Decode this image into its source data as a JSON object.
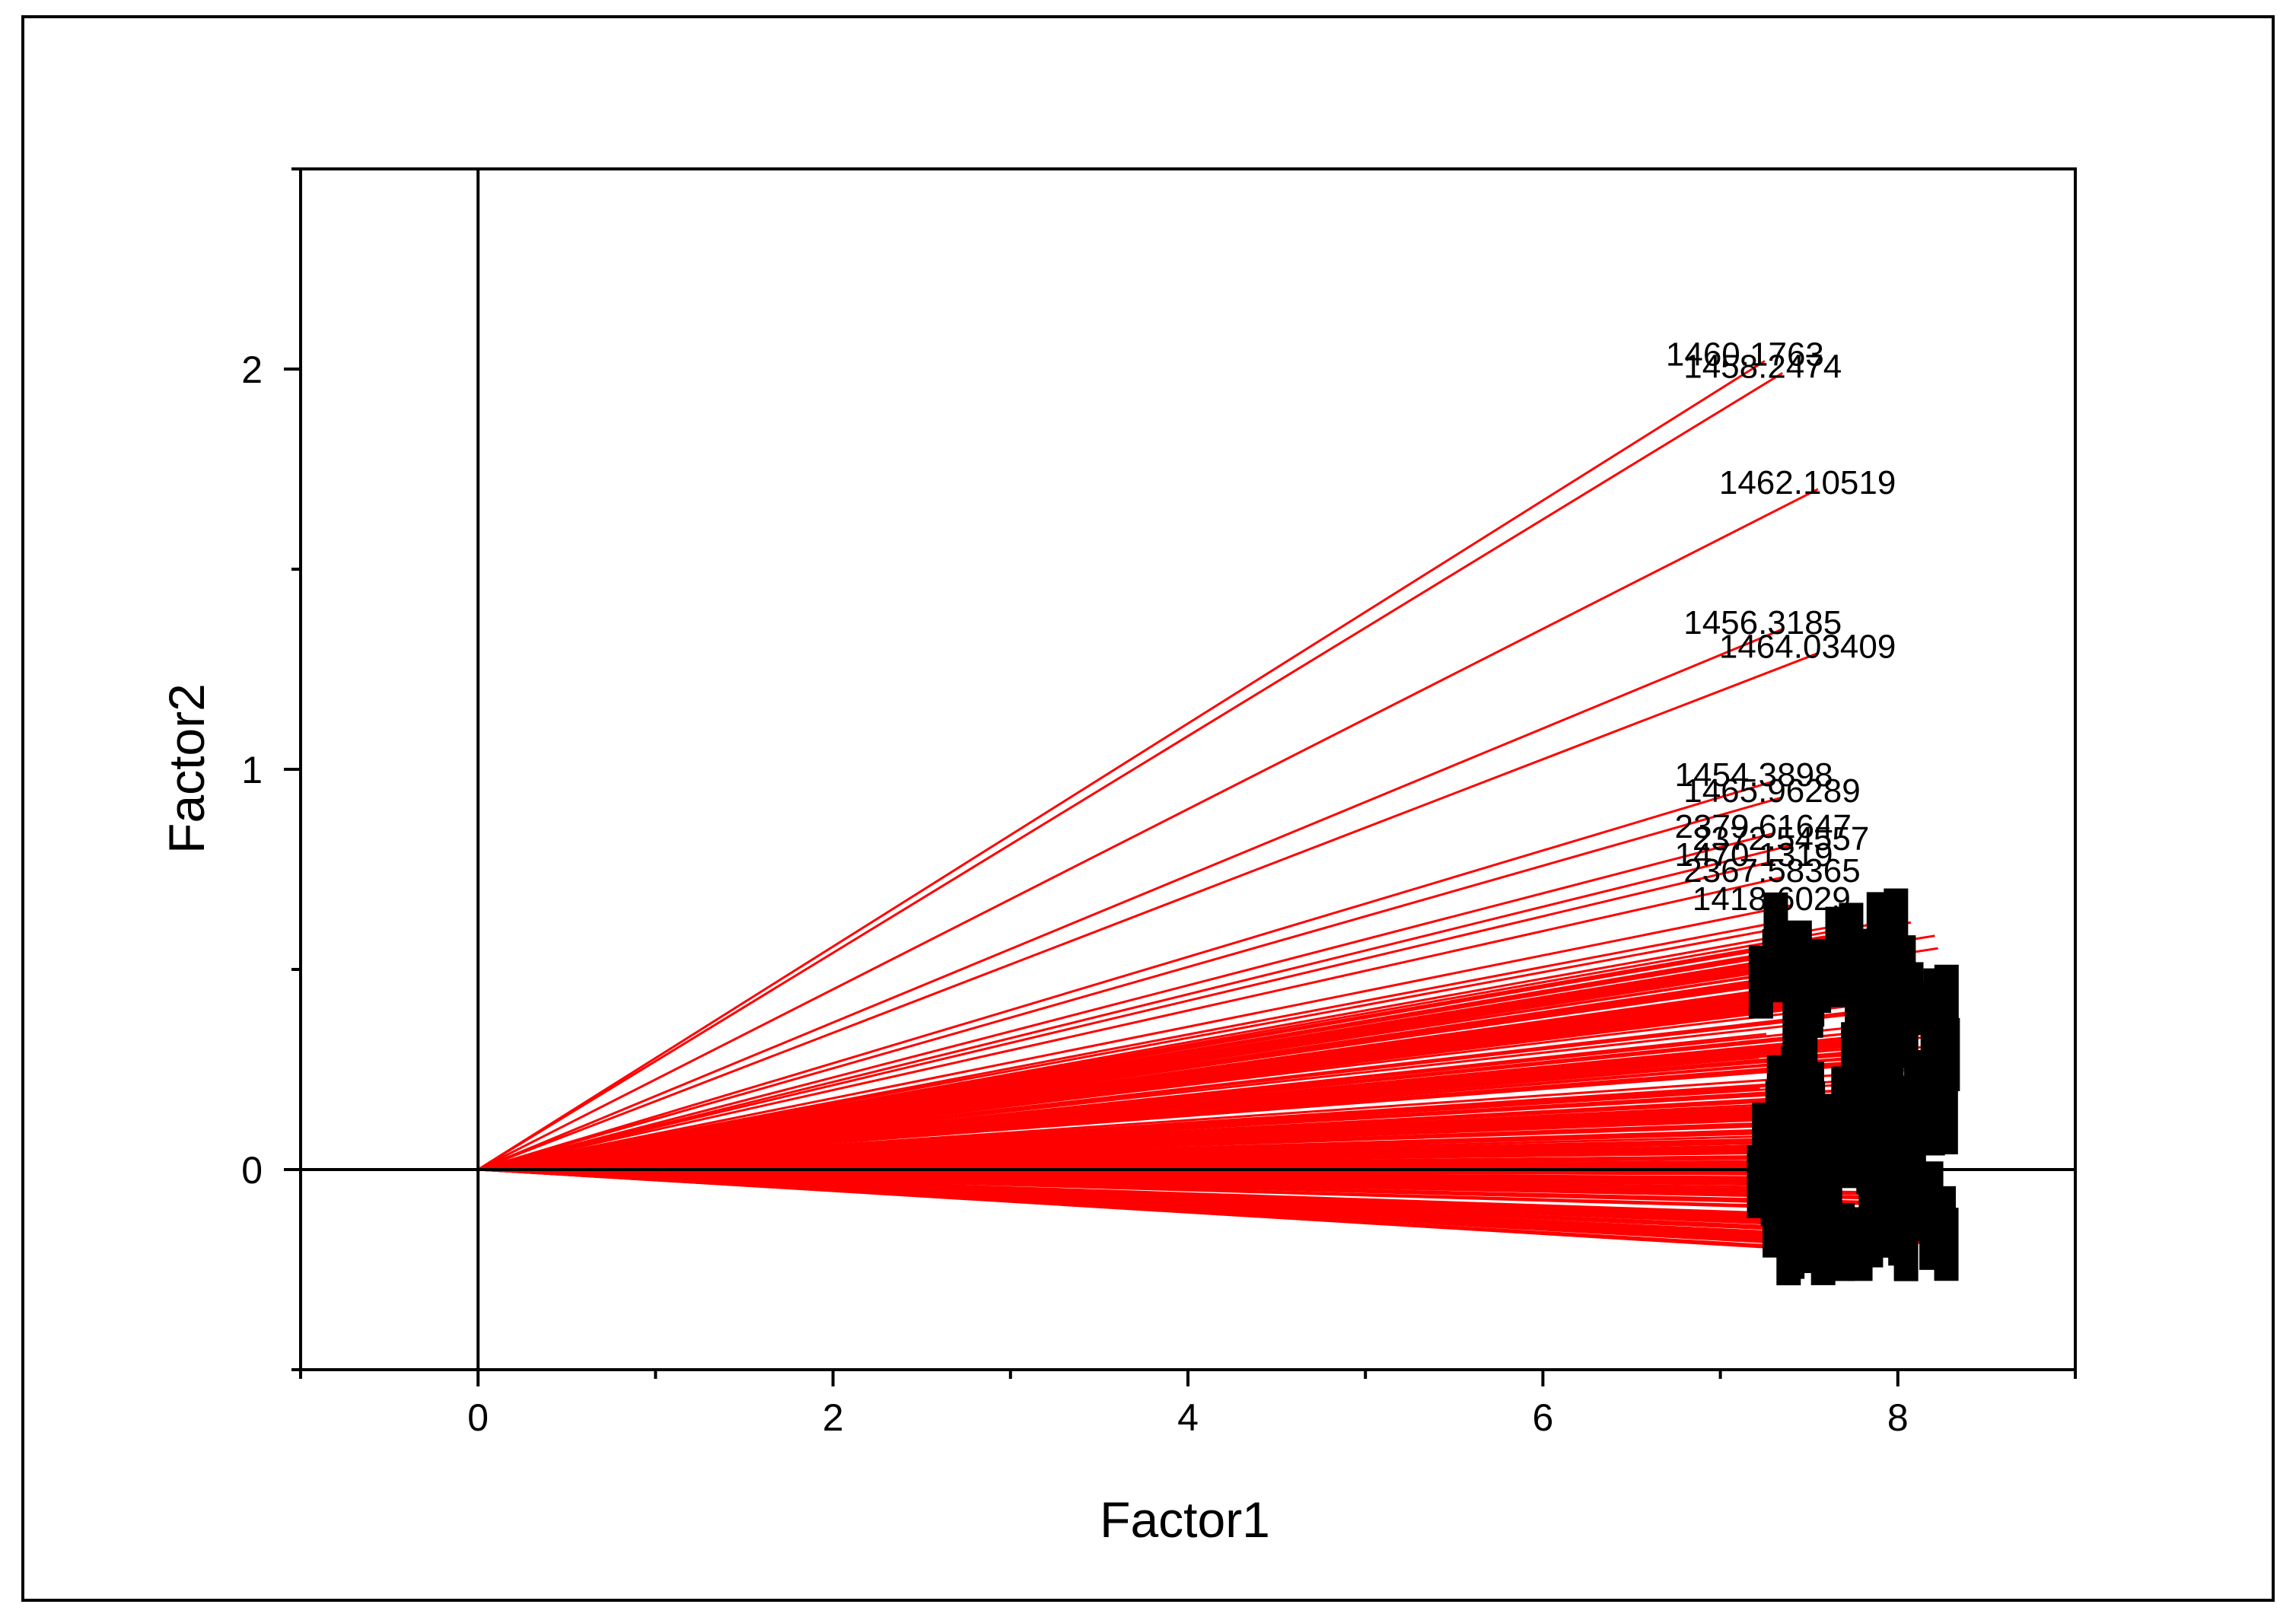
{
  "chart_data": {
    "type": "biplot-loadings",
    "title": "",
    "xlabel": "Factor1",
    "ylabel": "Factor2",
    "xlim": [
      -1,
      9
    ],
    "ylim": [
      -0.5,
      2.5
    ],
    "xticks": [
      0,
      2,
      4,
      6,
      8
    ],
    "yticks": [
      0,
      1,
      2
    ],
    "grid": false,
    "vector_color": "#ff0000",
    "zero_line_color": "#000000",
    "labeled_vectors": [
      {
        "label": "1460.1763",
        "x": 7.25,
        "y": 2.02
      },
      {
        "label": "1458.2474",
        "x": 7.35,
        "y": 1.99
      },
      {
        "label": "1462.10519",
        "x": 7.55,
        "y": 1.7
      },
      {
        "label": "1456.3185",
        "x": 7.35,
        "y": 1.35
      },
      {
        "label": "1464.03409",
        "x": 7.55,
        "y": 1.29
      },
      {
        "label": "1454.3898",
        "x": 7.3,
        "y": 0.97
      },
      {
        "label": "1465.96289",
        "x": 7.35,
        "y": 0.93
      },
      {
        "label": "2379.61647",
        "x": 7.3,
        "y": 0.84
      },
      {
        "label": "2372.54557",
        "x": 7.4,
        "y": 0.81
      },
      {
        "label": "1470.1319",
        "x": 7.3,
        "y": 0.77
      },
      {
        "label": "2367.58365",
        "x": 7.35,
        "y": 0.73
      },
      {
        "label": "1418.6029",
        "x": 7.4,
        "y": 0.66
      }
    ],
    "dense_cluster": {
      "count": 240,
      "x_range": [
        7.2,
        8.3
      ],
      "y_range": [
        -0.2,
        0.62
      ]
    }
  }
}
